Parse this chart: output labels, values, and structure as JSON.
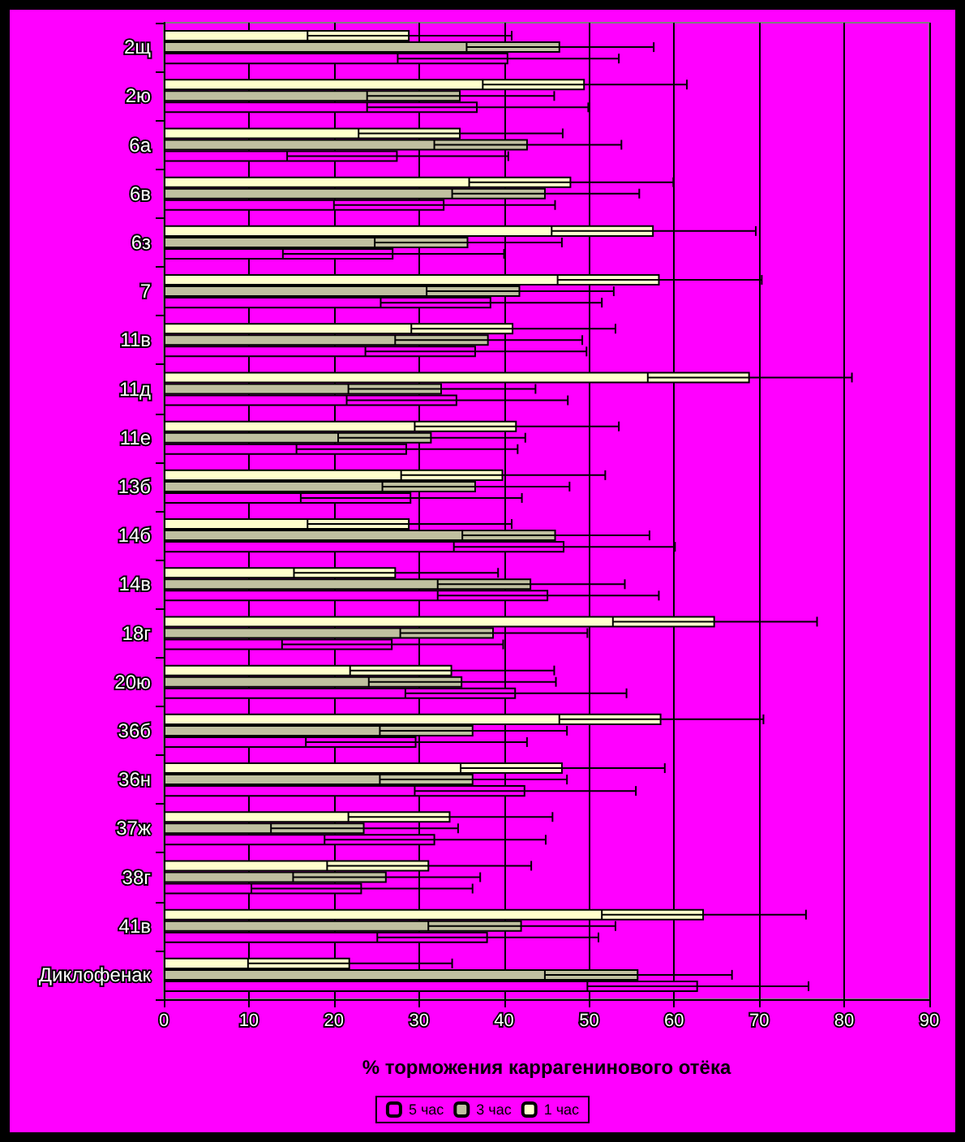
{
  "chart_data": {
    "type": "bar",
    "orientation": "horizontal",
    "xlabel": "% торможения каррагенинового отёка",
    "categories": [
      "2щ",
      "2ю",
      "6а",
      "6в",
      "6з",
      "7",
      "11в",
      "11д",
      "11е",
      "13б",
      "14б",
      "14в",
      "18г",
      "20ю",
      "36б",
      "36н",
      "37ж",
      "38г",
      "41в",
      "Диклофенак"
    ],
    "series": [
      {
        "name": "5 час",
        "color": "#ff00ff",
        "values": [
          40.5,
          36.9,
          27.5,
          33,
          27,
          38.5,
          36.7,
          34.5,
          28.6,
          29.1,
          47.1,
          45.2,
          26.9,
          41.4,
          29.7,
          42.5,
          31.9,
          23.3,
          38.1,
          62.8
        ],
        "errors": [
          13,
          13,
          13,
          13,
          13,
          13,
          13,
          13,
          13,
          13,
          13,
          13,
          13,
          13,
          13,
          13,
          13,
          13,
          13,
          13
        ]
      },
      {
        "name": "3 час",
        "color": "#c0c0a0",
        "values": [
          46.6,
          34.9,
          42.8,
          44.9,
          35.8,
          41.9,
          38.2,
          32.7,
          31.5,
          36.7,
          46.1,
          43.2,
          38.8,
          35.1,
          36.4,
          36.4,
          23.6,
          26.2,
          42.1,
          55.8
        ],
        "errors": [
          11,
          11,
          11,
          11,
          11,
          11,
          11,
          11,
          11,
          11,
          11,
          11,
          11,
          11,
          11,
          11,
          11,
          11,
          11,
          11
        ]
      },
      {
        "name": "1 час",
        "color": "#ffffcc",
        "values": [
          28.9,
          49.5,
          34.9,
          47.9,
          57.6,
          58.3,
          41.1,
          68.9,
          41.5,
          39.9,
          28.9,
          27.3,
          64.8,
          33.9,
          58.5,
          46.9,
          33.7,
          31.2,
          63.5,
          21.9
        ],
        "errors": [
          12,
          12,
          12,
          12,
          12,
          12,
          12,
          12,
          12,
          12,
          12,
          12,
          12,
          12,
          12,
          12,
          12,
          12,
          12,
          12
        ]
      }
    ],
    "xlim": [
      0,
      90
    ],
    "xticks": [
      0,
      10,
      20,
      30,
      40,
      50,
      60,
      70,
      80,
      90
    ],
    "grid": "x",
    "legend": "bottom"
  }
}
